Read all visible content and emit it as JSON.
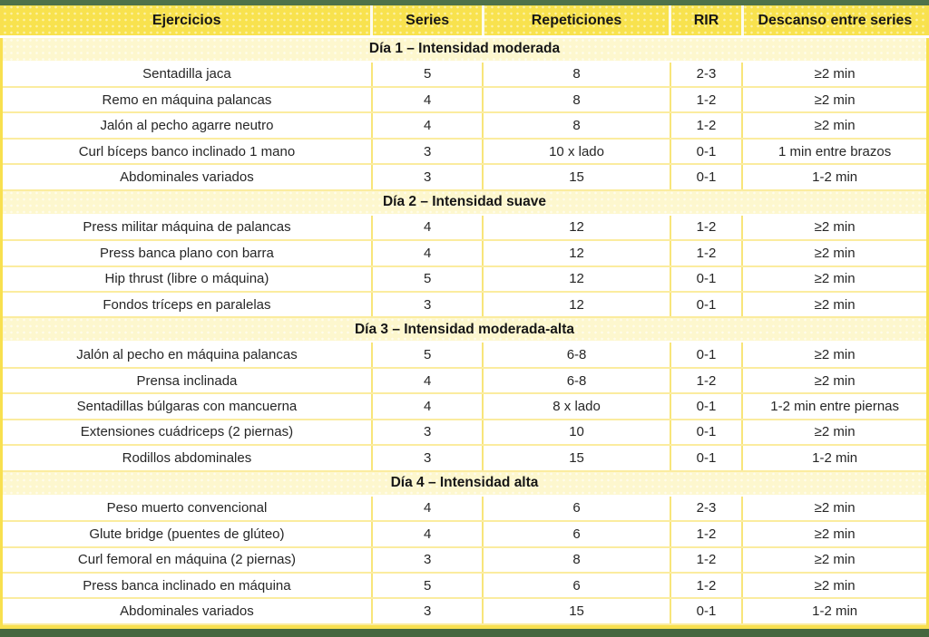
{
  "colors": {
    "top_bar_green": "#4F7249",
    "bottom_bar_green": "#45673F",
    "header_yellow": "#F8E24E",
    "section_yellow": "#FDF7CE",
    "outer_border_yellow": "#F8E04F",
    "grid_line_yellow": "#F8E57A",
    "text_dark": "#161616"
  },
  "table": {
    "columns": [
      "Ejercicios",
      "Series",
      "Repeticiones",
      "RIR",
      "Descanso entre series"
    ],
    "sections": [
      {
        "title": "Día 1 – Intensidad moderada",
        "rows": [
          [
            "Sentadilla jaca",
            "5",
            "8",
            "2-3",
            "≥2 min"
          ],
          [
            "Remo en máquina palancas",
            "4",
            "8",
            "1-2",
            "≥2 min"
          ],
          [
            "Jalón al pecho agarre neutro",
            "4",
            "8",
            "1-2",
            "≥2 min"
          ],
          [
            "Curl bíceps banco inclinado 1 mano",
            "3",
            "10 x lado",
            "0-1",
            "1 min entre brazos"
          ],
          [
            "Abdominales variados",
            "3",
            "15",
            "0-1",
            "1-2 min"
          ]
        ]
      },
      {
        "title": "Día 2 – Intensidad suave",
        "rows": [
          [
            "Press militar máquina de palancas",
            "4",
            "12",
            "1-2",
            "≥2 min"
          ],
          [
            "Press banca plano con barra",
            "4",
            "12",
            "1-2",
            "≥2 min"
          ],
          [
            "Hip thrust (libre o máquina)",
            "5",
            "12",
            "0-1",
            "≥2 min"
          ],
          [
            "Fondos tríceps en paralelas",
            "3",
            "12",
            "0-1",
            "≥2 min"
          ]
        ]
      },
      {
        "title": "Día 3 – Intensidad moderada-alta",
        "rows": [
          [
            "Jalón al pecho en máquina palancas",
            "5",
            "6-8",
            "0-1",
            "≥2 min"
          ],
          [
            "Prensa inclinada",
            "4",
            "6-8",
            "1-2",
            "≥2 min"
          ],
          [
            "Sentadillas búlgaras con mancuerna",
            "4",
            "8 x lado",
            "0-1",
            "1-2 min entre piernas"
          ],
          [
            "Extensiones cuádriceps (2 piernas)",
            "3",
            "10",
            "0-1",
            "≥2 min"
          ],
          [
            "Rodillos abdominales",
            "3",
            "15",
            "0-1",
            "1-2 min"
          ]
        ]
      },
      {
        "title": "Día 4 – Intensidad alta",
        "rows": [
          [
            "Peso muerto convencional",
            "4",
            "6",
            "2-3",
            "≥2 min"
          ],
          [
            "Glute bridge (puentes de glúteo)",
            "4",
            "6",
            "1-2",
            "≥2 min"
          ],
          [
            "Curl femoral en máquina (2 piernas)",
            "3",
            "8",
            "1-2",
            "≥2 min"
          ],
          [
            "Press banca inclinado en máquina",
            "5",
            "6",
            "1-2",
            "≥2 min"
          ],
          [
            "Abdominales variados",
            "3",
            "15",
            "0-1",
            "1-2 min"
          ]
        ]
      }
    ]
  }
}
